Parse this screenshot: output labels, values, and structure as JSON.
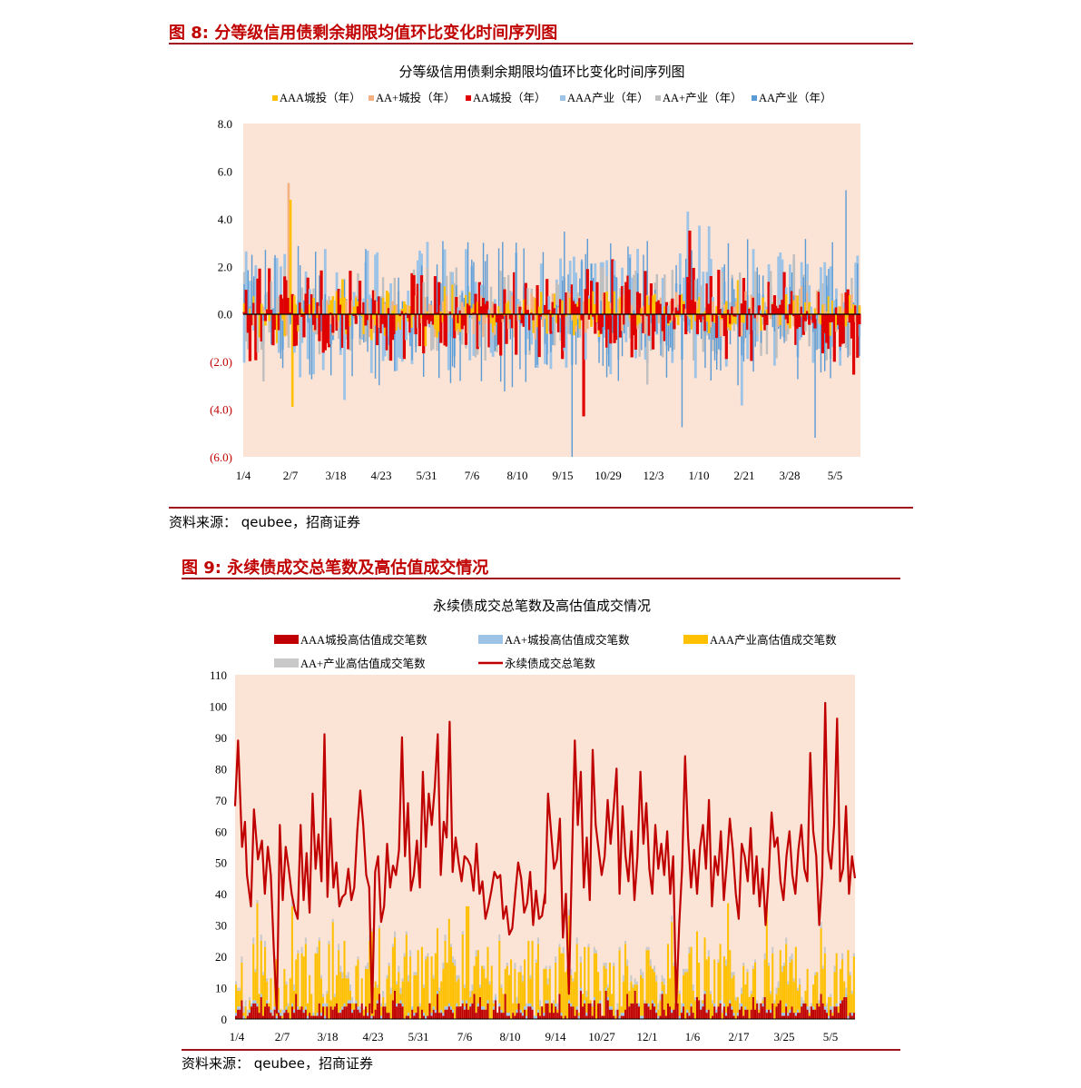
{
  "fig8": {
    "caption": "图 8:  分等级信用债剩余期限均值环比变化时间序列图",
    "source": "资料来源：  qeubee，招商证券"
  },
  "fig9": {
    "caption": "图 9:  永续债成交总笔数及高估值成交情况",
    "source": "资料来源：  qeubee，招商证券"
  },
  "colors": {
    "caption_red": "#c00000",
    "rule": "#a0141e",
    "plot_bg": "#fbe3d5",
    "aaa_chengtou": "#ffc000",
    "aaplus_chengtou_fig8": "#f4b183",
    "aa_chengtou": "#e00000",
    "aaa_industry": "#9dc3e6",
    "aaplus_industry": "#bfbfbf",
    "aa_industry": "#5b9bd5",
    "fig9_aaa_chengtou": "#c00000",
    "fig9_aaplus_chengtou": "#9dc3e6",
    "fig9_aaa_industry": "#ffc000",
    "fig9_aaplus_industry": "#c9c9c9",
    "fig9_total_line": "#c00000",
    "negative_label": "#c00000"
  },
  "chart_data": [
    {
      "type": "bar",
      "title": "分等级信用债剩余期限均值环比变化时间序列图",
      "ylim": [
        -6,
        8
      ],
      "yticks": [
        8,
        6,
        4,
        2,
        0,
        -2,
        -4,
        -6
      ],
      "ytick_labels": [
        "8.0",
        "6.0",
        "4.0",
        "2.0",
        "0.0",
        "(2.0)",
        "(4.0)",
        "(6.0)"
      ],
      "xtick_labels": [
        "1/4",
        "2/7",
        "3/18",
        "4/23",
        "5/31",
        "7/6",
        "8/10",
        "9/15",
        "10/29",
        "12/3",
        "1/10",
        "2/21",
        "3/28",
        "5/5"
      ],
      "legend_position": "top",
      "series": [
        {
          "name": "AAA城投（年）"
        },
        {
          "name": "AA+城投（年）"
        },
        {
          "name": "AA城投（年）"
        },
        {
          "name": "AAA产业（年）"
        },
        {
          "name": "AA+产业（年）"
        },
        {
          "name": "AA产业（年）"
        }
      ],
      "num_periods": 320,
      "highlights": [
        {
          "series": "AA+城投（年）",
          "x_index": 23,
          "value": 5.5
        },
        {
          "series": "AAA城投（年）",
          "x_index": 24,
          "value": 4.8
        },
        {
          "series": "AAA城投（年）",
          "x_index": 25,
          "value": -3.9
        },
        {
          "series": "AA产业（年）",
          "x_index": 170,
          "value": -6.0
        },
        {
          "series": "AA城投（年）",
          "x_index": 176,
          "value": -4.3
        },
        {
          "series": "AAA产业（年）",
          "x_index": 230,
          "value": 4.3
        },
        {
          "series": "AA城投（年）",
          "x_index": 231,
          "value": 3.5
        },
        {
          "series": "AA产业（年）",
          "x_index": 312,
          "value": 5.2
        },
        {
          "series": "AA产业（年）",
          "x_index": 296,
          "value": -5.2
        }
      ]
    },
    {
      "type": "bar",
      "title": "永续债成交总笔数及高估值成交情况",
      "ylim": [
        0,
        110
      ],
      "yticks": [
        110,
        100,
        90,
        80,
        70,
        60,
        50,
        40,
        30,
        20,
        10,
        0
      ],
      "xtick_labels": [
        "1/4",
        "2/7",
        "3/18",
        "4/23",
        "5/31",
        "7/6",
        "8/10",
        "9/14",
        "10/27",
        "12/1",
        "1/6",
        "2/17",
        "3/25",
        "5/5"
      ],
      "legend_position": "top",
      "series": [
        {
          "name": "AAA城投高估值成交笔数",
          "kind": "bar"
        },
        {
          "name": "AA+城投高估值成交笔数",
          "kind": "bar"
        },
        {
          "name": "AAA产业高估值成交笔数",
          "kind": "bar"
        },
        {
          "name": "AA+产业高估值成交笔数",
          "kind": "bar"
        },
        {
          "name": "永续债成交总笔数",
          "kind": "line"
        }
      ],
      "num_periods": 320,
      "total_line_points": [
        [
          0,
          68
        ],
        [
          3,
          89
        ],
        [
          7,
          55
        ],
        [
          10,
          63
        ],
        [
          12,
          46
        ],
        [
          16,
          36
        ],
        [
          19,
          67
        ],
        [
          23,
          51
        ],
        [
          27,
          57
        ],
        [
          30,
          40
        ],
        [
          33,
          55
        ],
        [
          36,
          46
        ],
        [
          39,
          22
        ],
        [
          42,
          2
        ],
        [
          45,
          62
        ],
        [
          48,
          38
        ],
        [
          51,
          55
        ],
        [
          54,
          48
        ],
        [
          57,
          40
        ],
        [
          60,
          35
        ],
        [
          63,
          32
        ],
        [
          66,
          62
        ],
        [
          69,
          38
        ],
        [
          72,
          53
        ],
        [
          75,
          34
        ],
        [
          78,
          72
        ],
        [
          81,
          48
        ],
        [
          84,
          59
        ],
        [
          87,
          44
        ],
        [
          90,
          91
        ],
        [
          93,
          39
        ],
        [
          96,
          64
        ],
        [
          99,
          42
        ],
        [
          102,
          50
        ],
        [
          105,
          36
        ],
        [
          108,
          39
        ],
        [
          111,
          40
        ],
        [
          114,
          48
        ],
        [
          117,
          38
        ],
        [
          120,
          42
        ],
        [
          123,
          60
        ],
        [
          126,
          73
        ],
        [
          129,
          62
        ],
        [
          132,
          46
        ],
        [
          135,
          42
        ],
        [
          138,
          2
        ],
        [
          141,
          47
        ],
        [
          144,
          52
        ],
        [
          147,
          31
        ],
        [
          150,
          36
        ],
        [
          153,
          56
        ],
        [
          156,
          42
        ],
        [
          159,
          49
        ],
        [
          162,
          46
        ],
        [
          165,
          54
        ],
        [
          168,
          90
        ],
        [
          171,
          52
        ],
        [
          174,
          69
        ],
        [
          177,
          41
        ],
        [
          180,
          46
        ],
        [
          183,
          57
        ],
        [
          186,
          42
        ],
        [
          189,
          79
        ],
        [
          192,
          55
        ],
        [
          195,
          72
        ],
        [
          198,
          62
        ],
        [
          201,
          74
        ],
        [
          204,
          91
        ],
        [
          207,
          46
        ],
        [
          210,
          63
        ],
        [
          213,
          58
        ],
        [
          216,
          95
        ],
        [
          219,
          47
        ],
        [
          222,
          58
        ],
        [
          225,
          50
        ],
        [
          228,
          44
        ],
        [
          231,
          52
        ],
        [
          234,
          51
        ],
        [
          237,
          49
        ],
        [
          240,
          41
        ],
        [
          243,
          56
        ],
        [
          246,
          40
        ],
        [
          249,
          44
        ],
        [
          252,
          32
        ],
        [
          255,
          36
        ],
        [
          258,
          41
        ],
        [
          261,
          47
        ],
        [
          264,
          45
        ],
        [
          267,
          46
        ],
        [
          270,
          32
        ],
        [
          273,
          36
        ],
        [
          276,
          27
        ],
        [
          279,
          29
        ],
        [
          282,
          40
        ],
        [
          285,
          50
        ],
        [
          288,
          45
        ],
        [
          291,
          34
        ],
        [
          294,
          37
        ],
        [
          297,
          47
        ],
        [
          300,
          30
        ],
        [
          303,
          41
        ],
        [
          306,
          32
        ],
        [
          309,
          33
        ],
        [
          312,
          40
        ]
      ],
      "total_line_points_part2": [
        [
          0,
          37
        ],
        [
          3,
          72
        ],
        [
          6,
          60
        ],
        [
          9,
          48
        ],
        [
          12,
          51
        ],
        [
          15,
          64
        ],
        [
          18,
          26
        ],
        [
          21,
          40
        ],
        [
          24,
          8
        ],
        [
          27,
          50
        ],
        [
          30,
          89
        ],
        [
          33,
          62
        ],
        [
          36,
          79
        ],
        [
          39,
          42
        ],
        [
          42,
          58
        ],
        [
          45,
          38
        ],
        [
          48,
          86
        ],
        [
          51,
          62
        ],
        [
          54,
          54
        ],
        [
          57,
          46
        ],
        [
          60,
          52
        ],
        [
          63,
          70
        ],
        [
          66,
          56
        ],
        [
          69,
          67
        ],
        [
          72,
          80
        ],
        [
          75,
          40
        ],
        [
          78,
          68
        ],
        [
          81,
          52
        ],
        [
          84,
          44
        ],
        [
          87,
          60
        ],
        [
          90,
          38
        ],
        [
          93,
          52
        ],
        [
          96,
          79
        ],
        [
          99,
          56
        ],
        [
          102,
          69
        ],
        [
          105,
          48
        ],
        [
          108,
          40
        ],
        [
          111,
          62
        ],
        [
          114,
          48
        ],
        [
          117,
          56
        ],
        [
          120,
          46
        ],
        [
          123,
          60
        ],
        [
          126,
          40
        ],
        [
          129,
          52
        ],
        [
          132,
          4
        ],
        [
          135,
          30
        ],
        [
          138,
          48
        ],
        [
          141,
          84
        ],
        [
          144,
          58
        ],
        [
          147,
          42
        ],
        [
          150,
          54
        ],
        [
          153,
          40
        ],
        [
          156,
          55
        ],
        [
          159,
          62
        ],
        [
          162,
          48
        ],
        [
          165,
          70
        ],
        [
          168,
          36
        ],
        [
          171,
          52
        ],
        [
          174,
          46
        ],
        [
          177,
          60
        ],
        [
          180,
          38
        ],
        [
          183,
          50
        ],
        [
          186,
          64
        ],
        [
          189,
          54
        ],
        [
          192,
          40
        ],
        [
          195,
          32
        ],
        [
          198,
          56
        ],
        [
          201,
          52
        ],
        [
          204,
          44
        ],
        [
          207,
          61
        ],
        [
          210,
          40
        ],
        [
          213,
          52
        ],
        [
          216,
          36
        ],
        [
          219,
          48
        ],
        [
          222,
          30
        ],
        [
          225,
          45
        ],
        [
          228,
          66
        ],
        [
          231,
          55
        ],
        [
          234,
          58
        ],
        [
          237,
          44
        ],
        [
          240,
          38
        ],
        [
          243,
          52
        ],
        [
          246,
          60
        ],
        [
          249,
          46
        ],
        [
          252,
          40
        ],
        [
          255,
          54
        ],
        [
          258,
          62
        ],
        [
          261,
          48
        ],
        [
          264,
          44
        ],
        [
          267,
          85
        ],
        [
          270,
          60
        ],
        [
          273,
          52
        ],
        [
          276,
          30
        ],
        [
          279,
          46
        ],
        [
          282,
          101
        ],
        [
          285,
          54
        ],
        [
          288,
          48
        ],
        [
          291,
          62
        ],
        [
          294,
          96
        ],
        [
          297,
          44
        ],
        [
          300,
          48
        ],
        [
          303,
          68
        ],
        [
          306,
          40
        ],
        [
          309,
          52
        ],
        [
          312,
          45
        ]
      ]
    }
  ]
}
